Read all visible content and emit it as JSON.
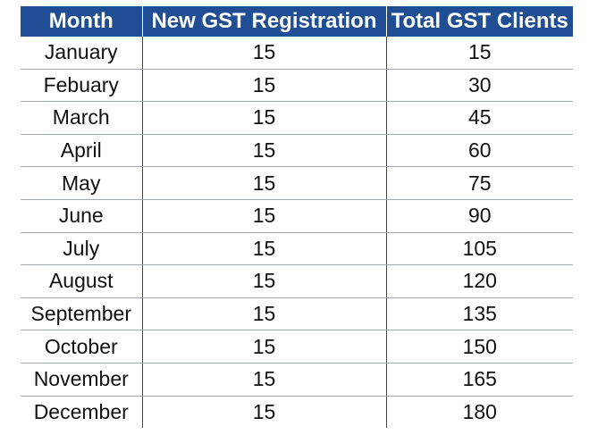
{
  "table": {
    "headers": [
      "Month",
      "New GST Registration",
      "Total GST Clients"
    ],
    "rows": [
      {
        "month": "January",
        "new": "15",
        "total": "15"
      },
      {
        "month": "Febuary",
        "new": "15",
        "total": "30"
      },
      {
        "month": "March",
        "new": "15",
        "total": "45"
      },
      {
        "month": "April",
        "new": "15",
        "total": "60"
      },
      {
        "month": "May",
        "new": "15",
        "total": "75"
      },
      {
        "month": "June",
        "new": "15",
        "total": "90"
      },
      {
        "month": "July",
        "new": "15",
        "total": "105"
      },
      {
        "month": "August",
        "new": "15",
        "total": "120"
      },
      {
        "month": "September",
        "new": "15",
        "total": "135"
      },
      {
        "month": "October",
        "new": "15",
        "total": "150"
      },
      {
        "month": "November",
        "new": "15",
        "total": "165"
      },
      {
        "month": "December",
        "new": "15",
        "total": "180"
      }
    ]
  },
  "colors": {
    "header_bg": "#1f4e95",
    "header_text": "#ffffff",
    "row_divider": "#9fa8b3",
    "column_divider": "#444444"
  }
}
